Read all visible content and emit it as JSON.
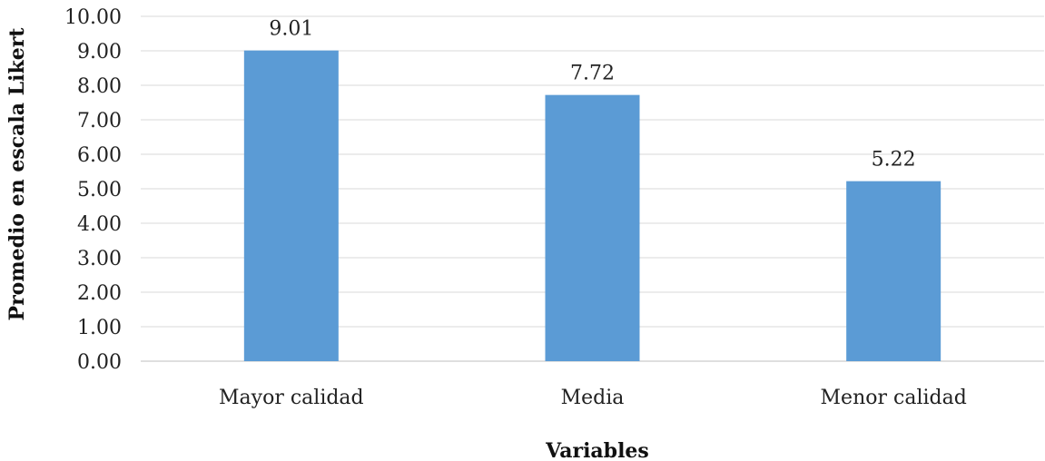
{
  "chart_data": {
    "type": "bar",
    "categories": [
      "Mayor calidad",
      "Media",
      "Menor calidad"
    ],
    "values": [
      9.01,
      7.72,
      5.22
    ],
    "data_labels": [
      "9.01",
      "7.72",
      "5.22"
    ],
    "title": "",
    "xlabel": "Variables",
    "ylabel": "Promedio en escala Likert",
    "ylim": [
      0,
      10
    ],
    "y_ticks": [
      "0.00",
      "1.00",
      "2.00",
      "3.00",
      "4.00",
      "5.00",
      "6.00",
      "7.00",
      "8.00",
      "9.00",
      "10.00"
    ],
    "grid": true,
    "legend": "none",
    "bar_color": "#5b9bd5"
  }
}
